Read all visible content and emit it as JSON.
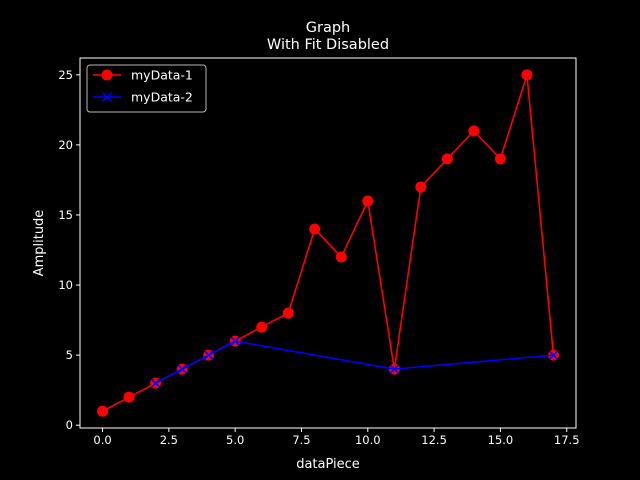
{
  "chart_data": {
    "type": "line",
    "title": "Graph",
    "subtitle": "With Fit Disabled",
    "xlabel": "dataPiece",
    "ylabel": "Amplitude",
    "xlim": [
      -0.85,
      17.85
    ],
    "ylim": [
      -0.2,
      26.2
    ],
    "xticks": [
      0.0,
      2.5,
      5.0,
      7.5,
      10.0,
      12.5,
      15.0,
      17.5
    ],
    "xtick_labels": [
      "0.0",
      "2.5",
      "5.0",
      "7.5",
      "10.0",
      "12.5",
      "15.0",
      "17.5"
    ],
    "yticks": [
      0,
      5,
      10,
      15,
      20,
      25
    ],
    "ytick_labels": [
      "0",
      "5",
      "10",
      "15",
      "20",
      "25"
    ],
    "grid": false,
    "legend_position": "top-left",
    "background": "#000000",
    "series": [
      {
        "name": "myData-1",
        "color": "#ff0000",
        "marker": "circle",
        "x": [
          0,
          1,
          2,
          3,
          4,
          5,
          6,
          7,
          8,
          9,
          10,
          11,
          12,
          13,
          14,
          15,
          16,
          17
        ],
        "y": [
          1,
          2,
          3,
          4,
          5,
          6,
          7,
          8,
          14,
          12,
          16,
          4,
          17,
          19,
          21,
          19,
          25,
          5
        ]
      },
      {
        "name": "myData-2",
        "color": "#0000ff",
        "marker": "x",
        "x": [
          2,
          3,
          4,
          5,
          11,
          17
        ],
        "y": [
          3,
          4,
          5,
          6,
          4,
          5
        ]
      }
    ]
  }
}
